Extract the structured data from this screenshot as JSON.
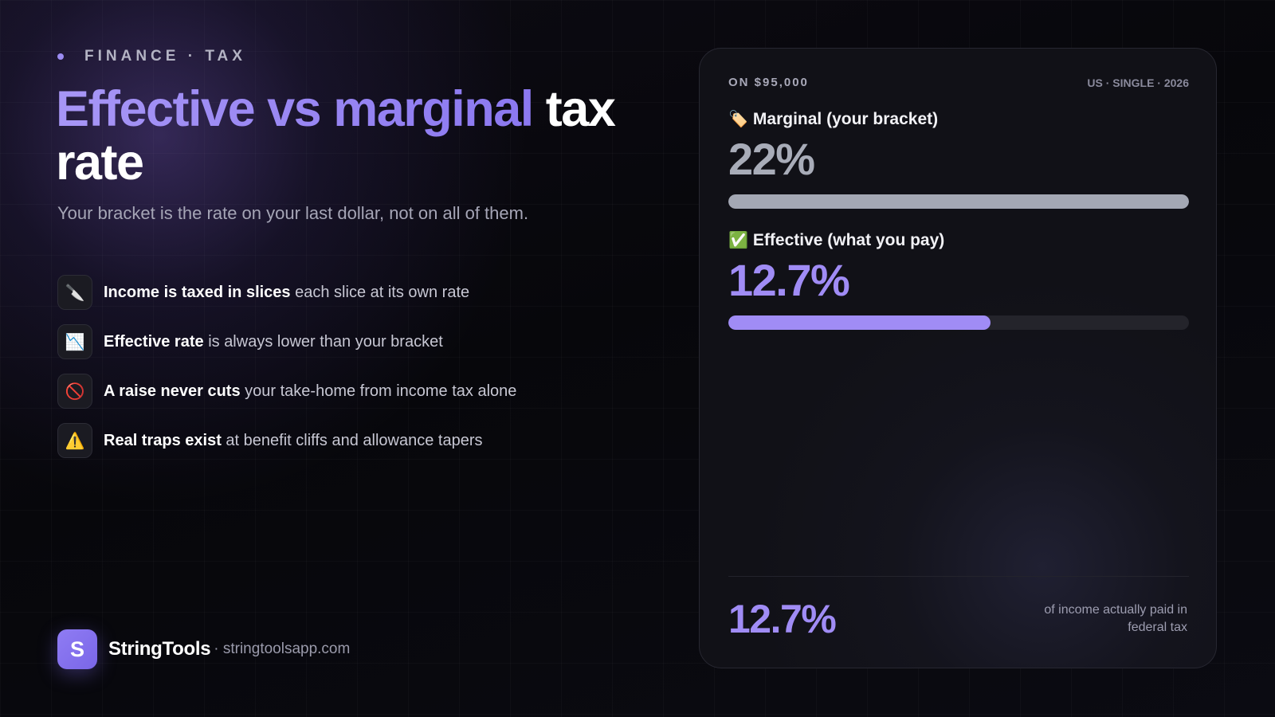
{
  "eyebrow": "FINANCE · TAX",
  "headline": {
    "accent": "Effective vs marginal",
    "rest": "tax rate"
  },
  "subtitle": "Your bracket is the rate on your last dollar, not on all of them.",
  "points": [
    {
      "icon": "knife-icon",
      "glyph": "🔪",
      "bold": "Income is taxed in slices",
      "text": "each slice at its own rate"
    },
    {
      "icon": "chart-down-icon",
      "glyph": "📉",
      "bold": "Effective rate",
      "text": "is always lower than your bracket"
    },
    {
      "icon": "prohibited-icon",
      "glyph": "🚫",
      "bold": "A raise never cuts",
      "text": "your take-home from income tax alone"
    },
    {
      "icon": "warning-icon",
      "glyph": "⚠️",
      "bold": "Real traps exist",
      "text": "at benefit cliffs and allowance tapers"
    }
  ],
  "brand": {
    "logo_letter": "S",
    "name": "StringTools",
    "url": "· stringtoolsapp.com"
  },
  "card": {
    "on_label": "ON $95,000",
    "meta": "US · SINGLE · 2026",
    "metrics": [
      {
        "icon": "label-tag-icon",
        "glyph": "🏷️",
        "label": "Marginal (your bracket)",
        "value_text": "22%",
        "fill_fraction": 1.0,
        "value_color": "#a8acb8",
        "bar_color": "#a4a8b4"
      },
      {
        "icon": "check-mark-icon",
        "glyph": "✅",
        "label": "Effective (what you pay)",
        "value_text": "12.7%",
        "fill_fraction": 0.57,
        "value_color": "#a08cf5",
        "bar_color": "#a08cf5"
      }
    ],
    "bottom_value": "12.7%",
    "bottom_caption": "of income actually paid in federal tax",
    "accent_color": "#a08cf5"
  }
}
